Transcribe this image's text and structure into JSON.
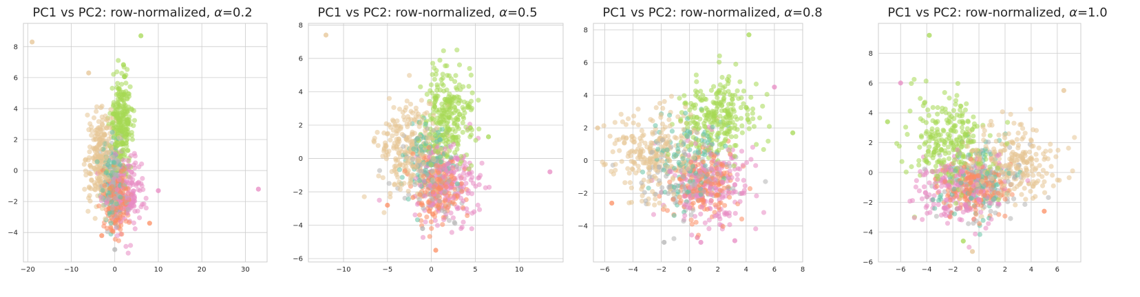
{
  "chart_data": [
    {
      "type": "scatter",
      "title_prefix": "PC1 vs PC2: row-normalized, ",
      "alpha_symbol": "α",
      "alpha_value": "=0.2",
      "xlim": [
        -21,
        35
      ],
      "ylim": [
        -5.9,
        9.5
      ],
      "xticks": [
        -20,
        -10,
        0,
        10,
        20,
        30
      ],
      "xtick_labels": [
        "−20",
        "−10",
        "0",
        "10",
        "20",
        "30"
      ],
      "yticks": [
        -4,
        -2,
        0,
        2,
        4,
        6,
        8
      ],
      "ytick_labels": [
        "−4",
        "−2",
        "0",
        "2",
        "4",
        "6",
        "8"
      ],
      "grid": true,
      "series": [
        {
          "name": "green",
          "color": "#a6d854",
          "cx": 1.5,
          "cy": 3.0,
          "sx": 1.3,
          "sy": 1.5,
          "n": 260
        },
        {
          "name": "tan",
          "color": "#e5c494",
          "cx": -3.0,
          "cy": 0.8,
          "sx": 1.7,
          "sy": 1.5,
          "n": 260
        },
        {
          "name": "pink",
          "color": "#e78ac3",
          "cx": 2.5,
          "cy": -1.3,
          "sx": 2.2,
          "sy": 1.2,
          "n": 200
        },
        {
          "name": "orange",
          "color": "#fc8d62",
          "cx": 0.5,
          "cy": -1.8,
          "sx": 1.3,
          "sy": 1.1,
          "n": 180
        },
        {
          "name": "teal",
          "color": "#66c2a5",
          "cx": -0.5,
          "cy": -0.5,
          "sx": 1.3,
          "sy": 1.2,
          "n": 110
        },
        {
          "name": "gray",
          "color": "#b3b3b3",
          "cx": 0.0,
          "cy": -1.0,
          "sx": 1.5,
          "sy": 1.3,
          "n": 120
        }
      ],
      "outliers": [
        {
          "x": -19,
          "y": 8.3,
          "color": "#e5c494"
        },
        {
          "x": 33,
          "y": -1.2,
          "color": "#e78ac3"
        },
        {
          "x": 6,
          "y": 8.7,
          "color": "#a6d854"
        },
        {
          "x": 10,
          "y": -1.3,
          "color": "#e78ac3"
        },
        {
          "x": -6,
          "y": 6.3,
          "color": "#e5c494"
        },
        {
          "x": 8,
          "y": -3.4,
          "color": "#fc8d62"
        },
        {
          "x": 0,
          "y": -5.1,
          "color": "#b3b3b3"
        },
        {
          "x": -3,
          "y": -4.2,
          "color": "#fc8d62"
        }
      ]
    },
    {
      "type": "scatter",
      "title_prefix": "PC1 vs PC2: row-normalized, ",
      "alpha_symbol": "α",
      "alpha_value": "=0.5",
      "xlim": [
        -14,
        15
      ],
      "ylim": [
        -6.2,
        8.1
      ],
      "xticks": [
        -10,
        -5,
        0,
        5,
        10
      ],
      "xtick_labels": [
        "−10",
        "−5",
        "0",
        "5",
        "10"
      ],
      "yticks": [
        -6,
        -4,
        -2,
        0,
        2,
        4,
        6,
        8
      ],
      "ytick_labels": [
        "−6",
        "−4",
        "−2",
        "0",
        "2",
        "4",
        "6",
        "8"
      ],
      "grid": true,
      "series": [
        {
          "name": "green",
          "color": "#a6d854",
          "cx": 2.0,
          "cy": 2.5,
          "sx": 1.4,
          "sy": 1.5,
          "n": 260
        },
        {
          "name": "tan",
          "color": "#e5c494",
          "cx": -2.5,
          "cy": 0.5,
          "sx": 1.8,
          "sy": 1.4,
          "n": 260
        },
        {
          "name": "pink",
          "color": "#e78ac3",
          "cx": 2.0,
          "cy": -1.5,
          "sx": 1.8,
          "sy": 1.1,
          "n": 200
        },
        {
          "name": "orange",
          "color": "#fc8d62",
          "cx": 0.5,
          "cy": -1.8,
          "sx": 1.4,
          "sy": 1.0,
          "n": 180
        },
        {
          "name": "teal",
          "color": "#66c2a5",
          "cx": -0.5,
          "cy": -0.3,
          "sx": 1.4,
          "sy": 1.2,
          "n": 110
        },
        {
          "name": "gray",
          "color": "#b3b3b3",
          "cx": 0.5,
          "cy": -1.2,
          "sx": 1.6,
          "sy": 1.2,
          "n": 120
        }
      ],
      "outliers": [
        {
          "x": -12,
          "y": 7.4,
          "color": "#e5c494"
        },
        {
          "x": 13.5,
          "y": -0.8,
          "color": "#e78ac3"
        },
        {
          "x": 0.5,
          "y": -5.5,
          "color": "#fc8d62"
        },
        {
          "x": 6.5,
          "y": 1.3,
          "color": "#a6d854"
        },
        {
          "x": -5,
          "y": -2.8,
          "color": "#fc8d62"
        },
        {
          "x": -1,
          "y": -4.2,
          "color": "#b3b3b3"
        }
      ]
    },
    {
      "type": "scatter",
      "title_prefix": "PC1 vs PC2: row-normalized, ",
      "alpha_symbol": "α",
      "alpha_value": "=0.8",
      "xlim": [
        -6.8,
        8.0
      ],
      "ylim": [
        -6.2,
        8.4
      ],
      "xticks": [
        -6,
        -4,
        -2,
        0,
        2,
        4,
        6,
        8
      ],
      "xtick_labels": [
        "−6",
        "−4",
        "−2",
        "0",
        "2",
        "4",
        "6",
        "8"
      ],
      "yticks": [
        -4,
        -2,
        0,
        2,
        4,
        6,
        8
      ],
      "ytick_labels": [
        "−4",
        "−2",
        "0",
        "2",
        "4",
        "6",
        "8"
      ],
      "grid": true,
      "series": [
        {
          "name": "green",
          "color": "#a6d854",
          "cx": 1.8,
          "cy": 2.5,
          "sx": 1.3,
          "sy": 1.3,
          "n": 260
        },
        {
          "name": "tan",
          "color": "#e5c494",
          "cx": -2.5,
          "cy": 0.5,
          "sx": 1.7,
          "sy": 1.4,
          "n": 260
        },
        {
          "name": "pink",
          "color": "#e78ac3",
          "cx": 1.5,
          "cy": -1.5,
          "sx": 1.6,
          "sy": 1.3,
          "n": 200
        },
        {
          "name": "orange",
          "color": "#fc8d62",
          "cx": 1.0,
          "cy": -1.5,
          "sx": 1.2,
          "sy": 1.1,
          "n": 180
        },
        {
          "name": "teal",
          "color": "#66c2a5",
          "cx": 0.0,
          "cy": 0.0,
          "sx": 1.5,
          "sy": 1.3,
          "n": 110
        },
        {
          "name": "gray",
          "color": "#b3b3b3",
          "cx": 0.0,
          "cy": -1.0,
          "sx": 1.6,
          "sy": 1.3,
          "n": 120
        }
      ],
      "outliers": [
        {
          "x": 7.3,
          "y": 1.7,
          "color": "#a6d854"
        },
        {
          "x": 4.2,
          "y": 7.7,
          "color": "#a6d854"
        },
        {
          "x": -1.8,
          "y": -5.0,
          "color": "#b3b3b3"
        },
        {
          "x": 0.8,
          "y": -5.0,
          "color": "#e78ac3"
        },
        {
          "x": 6,
          "y": 4.5,
          "color": "#e78ac3"
        },
        {
          "x": -6.5,
          "y": 2.0,
          "color": "#e5c494"
        },
        {
          "x": -5.5,
          "y": -2.6,
          "color": "#fc8d62"
        },
        {
          "x": 3.2,
          "y": -4.9,
          "color": "#e78ac3"
        }
      ]
    },
    {
      "type": "scatter",
      "title_prefix": "PC1 vs PC2: row-normalized, ",
      "alpha_symbol": "α",
      "alpha_value": "=1.0",
      "xlim": [
        -7.7,
        7.8
      ],
      "ylim": [
        -6.0,
        10.0
      ],
      "xticks": [
        -6,
        -4,
        -2,
        0,
        2,
        4,
        6
      ],
      "xtick_labels": [
        "−6",
        "−4",
        "−2",
        "0",
        "2",
        "4",
        "6"
      ],
      "yticks": [
        -6,
        -4,
        -2,
        0,
        2,
        4,
        6,
        8
      ],
      "ytick_labels": [
        "−6",
        "−4",
        "−2",
        "0",
        "2",
        "4",
        "6",
        "8"
      ],
      "grid": true,
      "series": [
        {
          "name": "green",
          "color": "#a6d854",
          "cx": -2.2,
          "cy": 2.0,
          "sx": 1.5,
          "sy": 1.6,
          "n": 260
        },
        {
          "name": "tan",
          "color": "#e5c494",
          "cx": 2.5,
          "cy": 0.5,
          "sx": 1.9,
          "sy": 1.3,
          "n": 260
        },
        {
          "name": "pink",
          "color": "#e78ac3",
          "cx": -1.5,
          "cy": -1.2,
          "sx": 1.7,
          "sy": 1.2,
          "n": 200
        },
        {
          "name": "orange",
          "color": "#fc8d62",
          "cx": -0.5,
          "cy": -1.0,
          "sx": 1.3,
          "sy": 1.0,
          "n": 180
        },
        {
          "name": "teal",
          "color": "#66c2a5",
          "cx": 0.0,
          "cy": -0.3,
          "sx": 1.5,
          "sy": 1.2,
          "n": 110
        },
        {
          "name": "gray",
          "color": "#b3b3b3",
          "cx": 0.0,
          "cy": -0.8,
          "sx": 1.6,
          "sy": 1.2,
          "n": 120
        }
      ],
      "outliers": [
        {
          "x": -3.8,
          "y": 9.2,
          "color": "#a6d854"
        },
        {
          "x": -0.5,
          "y": -5.3,
          "color": "#e5c494"
        },
        {
          "x": -7,
          "y": 3.4,
          "color": "#a6d854"
        },
        {
          "x": 6.5,
          "y": 5.5,
          "color": "#e5c494"
        },
        {
          "x": 5,
          "y": -2.6,
          "color": "#fc8d62"
        },
        {
          "x": -1.2,
          "y": -4.6,
          "color": "#a6d854"
        },
        {
          "x": -6,
          "y": 6.0,
          "color": "#e78ac3"
        }
      ]
    }
  ]
}
